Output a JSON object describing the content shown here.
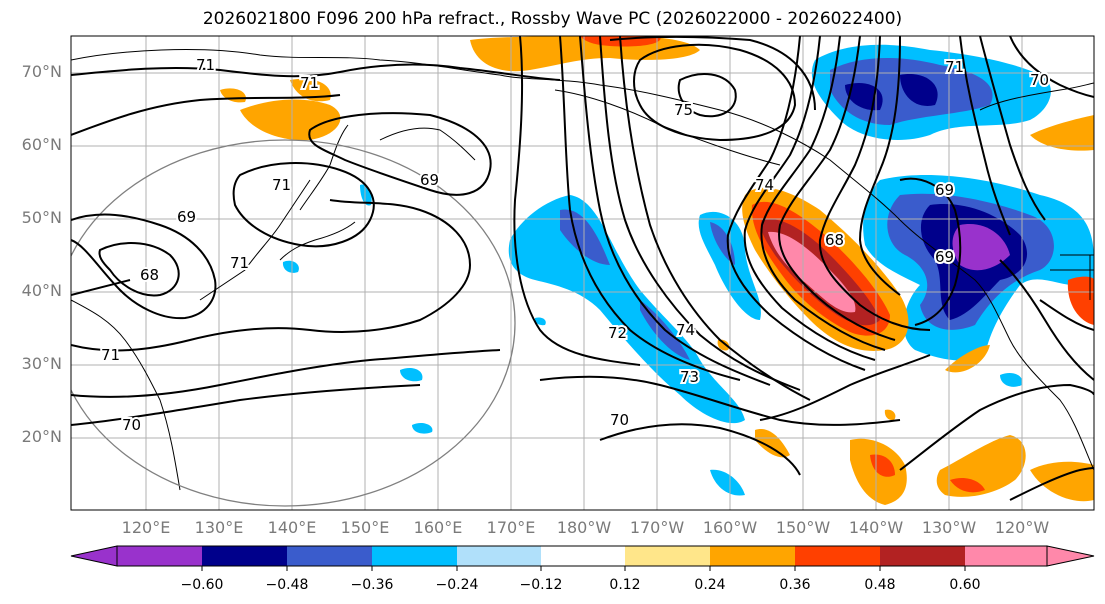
{
  "title": "2026021800 F096 200 hPa refract., Rossby Wave PC (2026022000 - 2026022400)",
  "lat_labels": [
    "70°N",
    "60°N",
    "50°N",
    "40°N",
    "30°N",
    "20°N"
  ],
  "lon_labels": [
    "120°E",
    "130°E",
    "140°E",
    "150°E",
    "160°E",
    "170°E",
    "180°W",
    "170°W",
    "160°W",
    "150°W",
    "140°W",
    "130°W",
    "120°W"
  ],
  "colorbar": {
    "ticks": [
      "−0.60",
      "−0.48",
      "−0.36",
      "−0.24",
      "−0.12",
      "0.12",
      "0.24",
      "0.36",
      "0.48",
      "0.60"
    ],
    "colors": [
      "#9932cc",
      "#00008b",
      "#3a5ccc",
      "#00bfff",
      "#b0e0fa",
      "#ffffff",
      "#ffe68a",
      "#ffa500",
      "#ff4000",
      "#b22222",
      "#ff88aa"
    ]
  },
  "contour_labels": [
    "71",
    "71",
    "71",
    "69",
    "69",
    "68",
    "71",
    "71",
    "70",
    "69",
    "72",
    "74",
    "74",
    "73",
    "70",
    "68",
    "69",
    "71",
    "70",
    "75"
  ],
  "colors": {
    "ocean_contour": "#000000",
    "grid": "#b0b0b0",
    "circle": "#808080"
  }
}
